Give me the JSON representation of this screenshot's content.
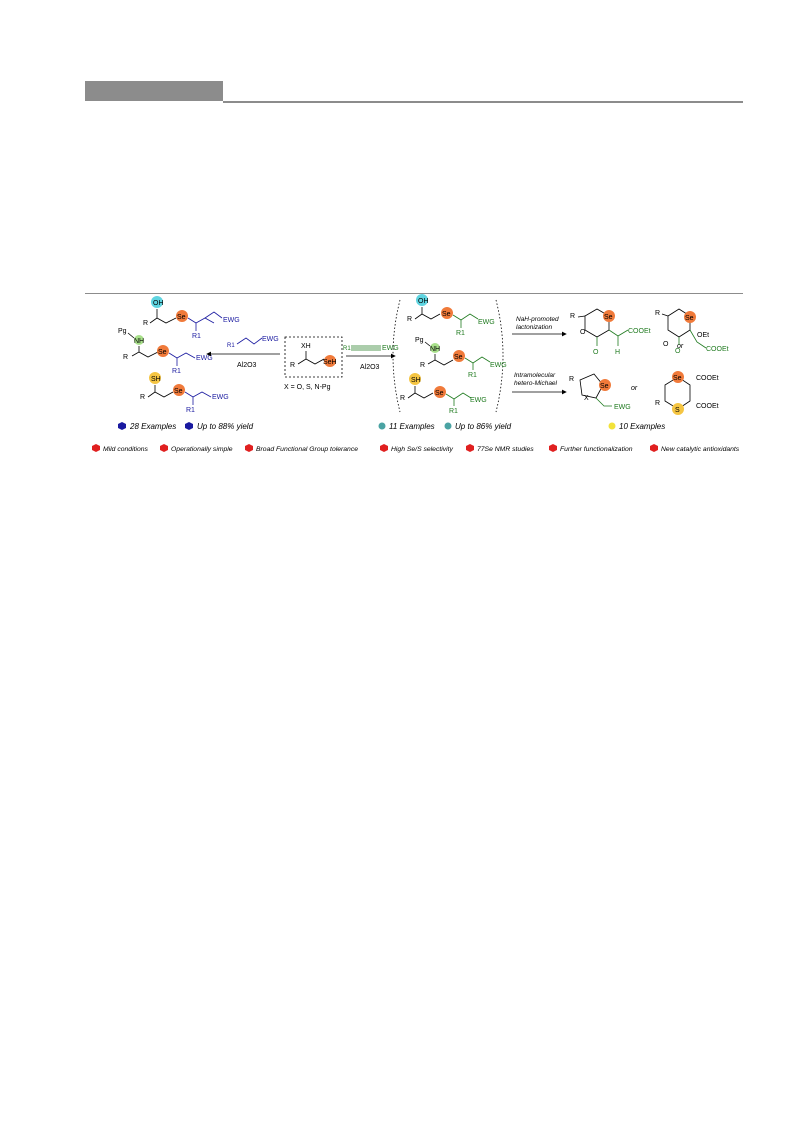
{
  "scheme": {
    "reactant": {
      "xh": "XH",
      "r": "R",
      "seh": "SeH",
      "x_def": "X = O, S, N-Pg"
    },
    "reagent_left": {
      "r1": "R1",
      "ewg": "EWG",
      "cond": "Al2O3"
    },
    "reagent_mid": {
      "r1": "R1",
      "ewg": "EWG",
      "cond": "Al2O3"
    },
    "left_products": {
      "oh": "OH",
      "r": "R",
      "se": "Se",
      "r1": "R1",
      "ewg": "EWG",
      "pg": "Pg",
      "nh": "NH",
      "sh": "SH",
      "stats_examples": "28 Examples",
      "stats_yield": "Up to 88% yield"
    },
    "mid_products": {
      "oh": "OH",
      "r": "R",
      "se": "Se",
      "r1": "R1",
      "ewg": "EWG",
      "pg": "Pg",
      "nh": "NH",
      "sh": "SH",
      "stats_examples": "11 Examples",
      "stats_yield": "Up to 86% yield"
    },
    "right_products": {
      "cond_top_1": "NaH-promoted",
      "cond_top_2": "lactonization",
      "cond_bottom_1": "Intramolecular",
      "cond_bottom_2": "hetero-Michael",
      "r": "R",
      "o": "O",
      "se": "Se",
      "cooet": "COOEt",
      "h": "H",
      "oet": "OEt",
      "or": "or",
      "x": "X",
      "ewg": "EWG",
      "s": "S",
      "stats_examples": "10 Examples"
    },
    "features": [
      "Mild conditions",
      "Operationally simple",
      "Broad Functional Group tolerance",
      "High Se/S selectivity",
      "77Se NMR studies",
      "Further functionalization",
      "New catalytic antioxidants"
    ],
    "colors": {
      "se_orange": "#f07a3a",
      "oh_cyan": "#5fd4e0",
      "sh_yellow": "#f5c542",
      "nh_green": "#a8e08a",
      "blue": "#1a1aa0",
      "green": "#1f7a1f",
      "teal": "#4aa3a3",
      "yellow": "#f2e23a",
      "red": "#e02020",
      "gray": "#8c8c8c"
    }
  }
}
